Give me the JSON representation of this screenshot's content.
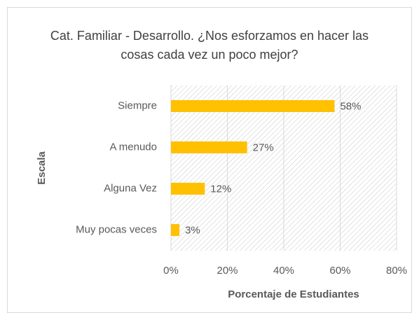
{
  "chart_data": {
    "type": "bar",
    "orientation": "horizontal",
    "title": "Cat. Familiar - Desarrollo. ¿Nos esforzamos en hacer las cosas cada vez un poco mejor?",
    "xlabel": "Porcentaje de Estudiantes",
    "ylabel": "Escala",
    "categories": [
      "Siempre",
      "A menudo",
      "Alguna Vez",
      "Muy pocas veces"
    ],
    "values": [
      58,
      27,
      12,
      3
    ],
    "value_labels": [
      "58%",
      "27%",
      "12%",
      "3%"
    ],
    "color": "#ffc000",
    "xlim": [
      0,
      80
    ],
    "xticks": [
      {
        "value": 0,
        "label": "0%"
      },
      {
        "value": 20,
        "label": "20%"
      },
      {
        "value": 40,
        "label": "40%"
      },
      {
        "value": 60,
        "label": "60%"
      },
      {
        "value": 80,
        "label": "80%"
      }
    ],
    "grid": true
  }
}
